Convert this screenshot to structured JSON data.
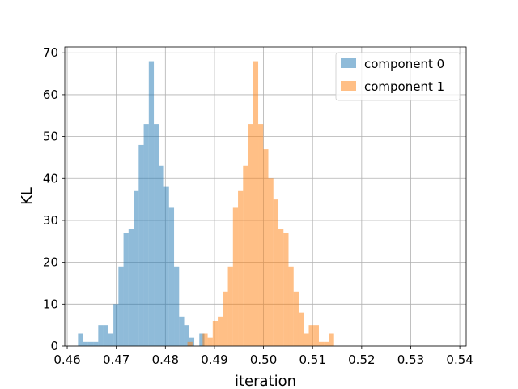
{
  "chart_data": {
    "type": "histogram",
    "title": "",
    "xlabel": "iteration",
    "ylabel": "KL",
    "xlim": [
      0.4595,
      0.5413
    ],
    "ylim": [
      0,
      71.4
    ],
    "xticks": [
      0.46,
      0.47,
      0.48,
      0.49,
      0.5,
      0.51,
      0.52,
      0.53,
      0.54
    ],
    "xtick_labels": [
      "0.46",
      "0.47",
      "0.48",
      "0.49",
      "0.50",
      "0.51",
      "0.52",
      "0.53",
      "0.54"
    ],
    "yticks": [
      0,
      10,
      20,
      30,
      40,
      50,
      60,
      70
    ],
    "ytick_labels": [
      "0",
      "10",
      "20",
      "30",
      "40",
      "50",
      "60",
      "70"
    ],
    "grid": true,
    "legend_position": "top-right",
    "bin_width": 0.00103,
    "series": [
      {
        "name": "component 0",
        "color": "#1f77b4",
        "opacity": 0.5,
        "bin_start": 0.4622,
        "counts": [
          3,
          1,
          1,
          1,
          5,
          5,
          3,
          10,
          19,
          27,
          28,
          37,
          48,
          53,
          68,
          53,
          43,
          38,
          33,
          19,
          7,
          5,
          2,
          0,
          3
        ]
      },
      {
        "name": "component 1",
        "color": "#ff7f0e",
        "opacity": 0.5,
        "bin_start": 0.4845,
        "counts": [
          1,
          0,
          0,
          3,
          2,
          6,
          7,
          13,
          19,
          33,
          37,
          43,
          53,
          68,
          53,
          47,
          40,
          35,
          28,
          27,
          19,
          13,
          8,
          3,
          5,
          5,
          1,
          1,
          3
        ]
      }
    ]
  }
}
